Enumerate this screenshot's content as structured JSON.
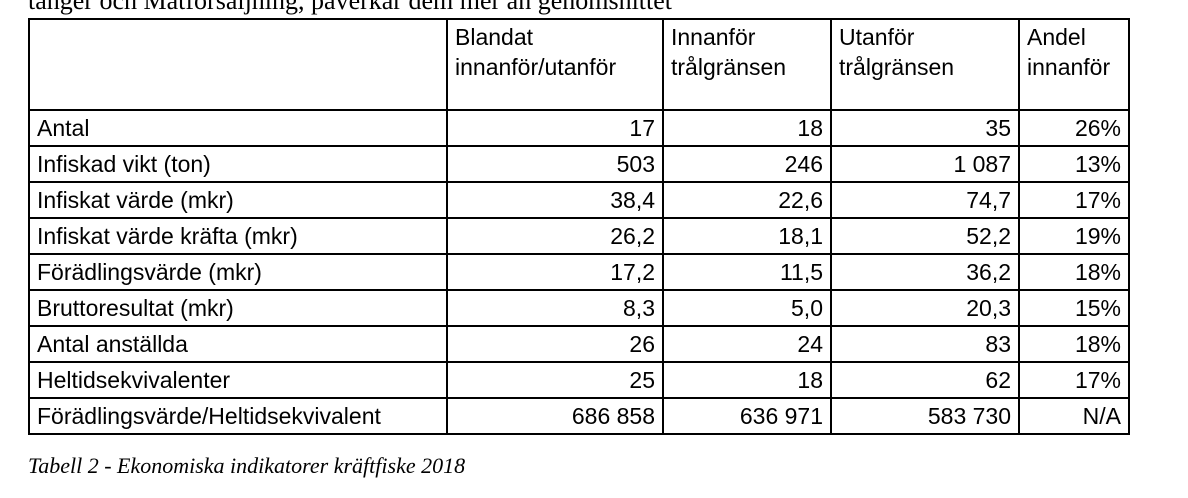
{
  "top_text": "tänger och Matförsäljning, påverkar dem mer än genomsnittet",
  "table": {
    "headers": [
      "",
      "Blandat innanför/utanför",
      "Innanför trålgränsen",
      "Utanför trålgränsen",
      "Andel innanför"
    ],
    "rows": [
      {
        "label": "Antal",
        "mixed": "17",
        "inside": "18",
        "outside": "35",
        "share": "26%"
      },
      {
        "label": "Infiskad vikt (ton)",
        "mixed": "503",
        "inside": "246",
        "outside": "1 087",
        "share": "13%"
      },
      {
        "label": "Infiskat värde (mkr)",
        "mixed": "38,4",
        "inside": "22,6",
        "outside": "74,7",
        "share": "17%"
      },
      {
        "label": "Infiskat värde kräfta (mkr)",
        "mixed": "26,2",
        "inside": "18,1",
        "outside": "52,2",
        "share": "19%"
      },
      {
        "label": "Förädlingsvärde (mkr)",
        "mixed": "17,2",
        "inside": "11,5",
        "outside": "36,2",
        "share": "18%"
      },
      {
        "label": "Bruttoresultat (mkr)",
        "mixed": "8,3",
        "inside": "5,0",
        "outside": "20,3",
        "share": "15%"
      },
      {
        "label": "Antal anställda",
        "mixed": "26",
        "inside": "24",
        "outside": "83",
        "share": "18%"
      },
      {
        "label": "Heltidsekvivalenter",
        "mixed": "25",
        "inside": "18",
        "outside": "62",
        "share": "17%"
      },
      {
        "label": "Förädlingsvärde/Heltidsekvivalent",
        "mixed": "686 858",
        "inside": "636 971",
        "outside": "583 730",
        "share": "N/A"
      }
    ]
  },
  "caption": "Tabell 2 - Ekonomiska indikatorer kräftfiske 2018"
}
